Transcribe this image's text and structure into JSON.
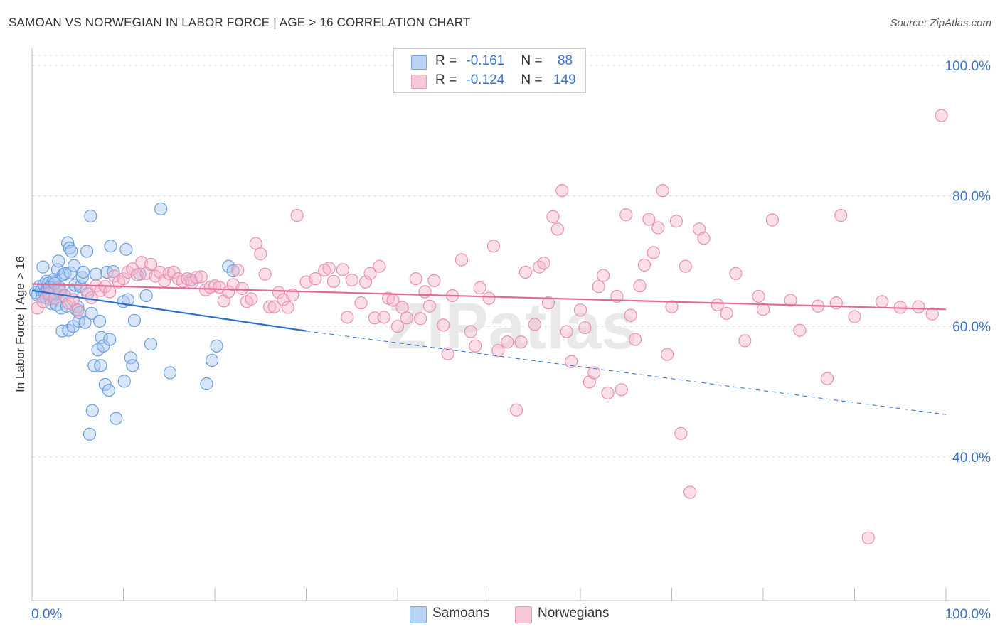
{
  "title": "SAMOAN VS NORWEGIAN IN LABOR FORCE | AGE > 16 CORRELATION CHART",
  "source": "Source: ZipAtlas.com",
  "watermark": "ZIPatlas",
  "legend_top": {
    "rows": [
      {
        "r_label": "R =",
        "r_value": "-0.161",
        "n_label": "N =",
        "n_value": "88"
      },
      {
        "r_label": "R =",
        "r_value": "-0.124",
        "n_label": "N =",
        "n_value": "149"
      }
    ]
  },
  "legend_bottom": [
    "Samoans",
    "Norwegians"
  ],
  "colors": {
    "samoan_fill": "#a9c8f0",
    "samoan_stroke": "#6b9ee0",
    "samoan_line": "#2a6fcf",
    "norwegian_fill": "#f6b8cc",
    "norwegian_stroke": "#ea8fb0",
    "norwegian_line": "#e26a96",
    "tick_label": "#3b74c7",
    "grid": "#dddddd"
  },
  "chart_data": {
    "type": "scatter",
    "title": "SAMOAN VS NORWEGIAN IN LABOR FORCE | AGE > 16 CORRELATION CHART",
    "xlabel": "",
    "ylabel": "In Labor Force | Age > 16",
    "xlim": [
      0,
      100
    ],
    "ylim": [
      18,
      101.5
    ],
    "x_tick_labels": [
      "0.0%",
      "100.0%"
    ],
    "y_ticks": [
      40,
      60,
      80,
      100
    ],
    "y_tick_labels": [
      "40.0%",
      "60.0%",
      "80.0%",
      "100.0%"
    ],
    "grid": true,
    "legend_position": "top-center",
    "series": [
      {
        "name": "Samoans",
        "r": -0.161,
        "n": 88,
        "trend": {
          "x": [
            0,
            30
          ],
          "y": [
            65.5,
            59.3
          ],
          "dashed_to": [
            100,
            46.5
          ]
        },
        "points": [
          [
            0.4,
            65.2
          ],
          [
            0.6,
            64.8
          ],
          [
            0.8,
            66.1
          ],
          [
            1.0,
            65.5
          ],
          [
            1.1,
            64.6
          ],
          [
            1.2,
            69.1
          ],
          [
            1.3,
            66.4
          ],
          [
            1.4,
            65.1
          ],
          [
            1.5,
            64.4
          ],
          [
            1.6,
            66.9
          ],
          [
            1.7,
            65.8
          ],
          [
            1.8,
            66.6
          ],
          [
            1.9,
            65.0
          ],
          [
            2.0,
            64.2
          ],
          [
            2.1,
            63.5
          ],
          [
            2.2,
            65.9
          ],
          [
            2.3,
            66.8
          ],
          [
            2.4,
            67.2
          ],
          [
            2.5,
            65.3
          ],
          [
            2.6,
            64.9
          ],
          [
            2.7,
            63.3
          ],
          [
            2.8,
            68.7
          ],
          [
            2.9,
            70.0
          ],
          [
            3.0,
            66.0
          ],
          [
            3.1,
            65.3
          ],
          [
            3.2,
            62.8
          ],
          [
            3.3,
            59.3
          ],
          [
            3.4,
            67.9
          ],
          [
            3.5,
            64.8
          ],
          [
            3.6,
            68.1
          ],
          [
            3.8,
            63.1
          ],
          [
            3.9,
            72.8
          ],
          [
            4.0,
            59.4
          ],
          [
            4.1,
            72.0
          ],
          [
            4.2,
            68.2
          ],
          [
            4.4,
            65.2
          ],
          [
            4.5,
            60.0
          ],
          [
            4.6,
            69.3
          ],
          [
            4.7,
            66.3
          ],
          [
            4.8,
            62.6
          ],
          [
            5.0,
            63.0
          ],
          [
            5.1,
            60.8
          ],
          [
            5.2,
            62.1
          ],
          [
            5.3,
            66.1
          ],
          [
            5.5,
            67.5
          ],
          [
            5.6,
            68.3
          ],
          [
            5.8,
            60.6
          ],
          [
            6.0,
            71.5
          ],
          [
            6.1,
            65.0
          ],
          [
            6.4,
            76.9
          ],
          [
            6.5,
            62.0
          ],
          [
            6.6,
            47.1
          ],
          [
            6.8,
            54.0
          ],
          [
            7.0,
            68.0
          ],
          [
            7.2,
            56.4
          ],
          [
            7.4,
            60.8
          ],
          [
            7.5,
            54.0
          ],
          [
            7.6,
            58.3
          ],
          [
            7.8,
            57.0
          ],
          [
            8.0,
            51.1
          ],
          [
            8.2,
            68.3
          ],
          [
            8.4,
            50.2
          ],
          [
            8.6,
            72.3
          ],
          [
            8.9,
            68.4
          ],
          [
            9.2,
            45.9
          ],
          [
            10.0,
            63.8
          ],
          [
            10.1,
            51.6
          ],
          [
            10.3,
            71.8
          ],
          [
            10.5,
            64.1
          ],
          [
            10.8,
            55.2
          ],
          [
            11.0,
            54.0
          ],
          [
            11.2,
            60.9
          ],
          [
            11.8,
            68.0
          ],
          [
            12.5,
            64.7
          ],
          [
            13.0,
            57.3
          ],
          [
            14.1,
            78.0
          ],
          [
            15.1,
            52.9
          ],
          [
            17.4,
            67.1
          ],
          [
            19.1,
            51.2
          ],
          [
            19.7,
            54.8
          ],
          [
            20.2,
            57.0
          ],
          [
            21.5,
            69.2
          ],
          [
            22.0,
            68.5
          ],
          [
            6.3,
            43.5
          ],
          [
            4.3,
            71.5
          ],
          [
            8.5,
            58.0
          ],
          [
            1.9,
            66.0
          ],
          [
            2.5,
            66.6
          ]
        ]
      },
      {
        "name": "Norwegians",
        "r": -0.124,
        "n": 149,
        "trend": {
          "x": [
            0,
            100
          ],
          "y": [
            66.5,
            62.6
          ]
        },
        "points": [
          [
            0.6,
            62.8
          ],
          [
            1.2,
            63.8
          ],
          [
            1.8,
            65.0
          ],
          [
            2.5,
            64.3
          ],
          [
            3.0,
            65.7
          ],
          [
            3.6,
            64.7
          ],
          [
            4.0,
            63.6
          ],
          [
            4.5,
            64.1
          ],
          [
            5.0,
            62.5
          ],
          [
            6.0,
            65.5
          ],
          [
            6.5,
            64.4
          ],
          [
            7.0,
            66.2
          ],
          [
            7.5,
            65.5
          ],
          [
            8.0,
            66.1
          ],
          [
            8.5,
            65.3
          ],
          [
            9.0,
            67.7
          ],
          [
            9.5,
            66.8
          ],
          [
            10.0,
            67.3
          ],
          [
            10.5,
            68.3
          ],
          [
            11.0,
            68.8
          ],
          [
            11.5,
            67.9
          ],
          [
            12.0,
            69.8
          ],
          [
            12.5,
            68.1
          ],
          [
            13.0,
            69.5
          ],
          [
            13.5,
            67.7
          ],
          [
            14.0,
            68.3
          ],
          [
            14.5,
            67.0
          ],
          [
            15.0,
            68.1
          ],
          [
            15.5,
            68.3
          ],
          [
            16.0,
            67.3
          ],
          [
            16.5,
            66.9
          ],
          [
            17.0,
            67.3
          ],
          [
            17.5,
            66.7
          ],
          [
            18.0,
            67.5
          ],
          [
            18.5,
            67.6
          ],
          [
            19.0,
            65.6
          ],
          [
            19.5,
            66.0
          ],
          [
            20.0,
            66.2
          ],
          [
            20.5,
            66.0
          ],
          [
            21.0,
            63.9
          ],
          [
            21.5,
            65.3
          ],
          [
            22.0,
            66.4
          ],
          [
            22.5,
            68.6
          ],
          [
            23.0,
            65.8
          ],
          [
            23.5,
            63.8
          ],
          [
            24.0,
            64.2
          ],
          [
            24.5,
            72.7
          ],
          [
            25.0,
            71.1
          ],
          [
            25.5,
            68.0
          ],
          [
            26.0,
            63.0
          ],
          [
            26.5,
            63.0
          ],
          [
            27.0,
            65.2
          ],
          [
            27.5,
            64.1
          ],
          [
            28.0,
            62.9
          ],
          [
            28.5,
            64.8
          ],
          [
            29.0,
            77.0
          ],
          [
            30.0,
            66.8
          ],
          [
            31.0,
            67.3
          ],
          [
            32.0,
            68.6
          ],
          [
            32.5,
            68.9
          ],
          [
            33.0,
            66.9
          ],
          [
            34.0,
            68.7
          ],
          [
            34.5,
            61.4
          ],
          [
            35.0,
            67.1
          ],
          [
            36.0,
            63.6
          ],
          [
            36.5,
            66.8
          ],
          [
            37.0,
            68.1
          ],
          [
            37.5,
            61.3
          ],
          [
            38.0,
            69.2
          ],
          [
            38.5,
            61.4
          ],
          [
            39.0,
            64.3
          ],
          [
            39.5,
            64.0
          ],
          [
            40.0,
            60.0
          ],
          [
            40.5,
            62.9
          ],
          [
            41.0,
            61.3
          ],
          [
            42.0,
            67.3
          ],
          [
            42.5,
            61.2
          ],
          [
            43.0,
            65.3
          ],
          [
            43.5,
            63.1
          ],
          [
            44.0,
            67.0
          ],
          [
            45.0,
            60.2
          ],
          [
            45.5,
            55.8
          ],
          [
            46.0,
            64.7
          ],
          [
            47.0,
            70.2
          ],
          [
            48.0,
            59.2
          ],
          [
            48.5,
            57.0
          ],
          [
            49.0,
            65.9
          ],
          [
            50.0,
            64.3
          ],
          [
            50.5,
            72.3
          ],
          [
            51.0,
            56.3
          ],
          [
            52.0,
            57.6
          ],
          [
            53.0,
            47.2
          ],
          [
            53.5,
            57.6
          ],
          [
            54.0,
            68.3
          ],
          [
            55.0,
            60.3
          ],
          [
            55.5,
            69.1
          ],
          [
            56.0,
            69.7
          ],
          [
            56.5,
            63.6
          ],
          [
            57.0,
            76.8
          ],
          [
            57.5,
            74.9
          ],
          [
            58.0,
            80.8
          ],
          [
            58.5,
            59.2
          ],
          [
            59.0,
            54.6
          ],
          [
            60.0,
            62.5
          ],
          [
            60.5,
            59.8
          ],
          [
            61.0,
            51.5
          ],
          [
            61.5,
            52.9
          ],
          [
            62.0,
            66.1
          ],
          [
            62.5,
            67.8
          ],
          [
            63.0,
            49.8
          ],
          [
            64.0,
            64.6
          ],
          [
            64.5,
            50.3
          ],
          [
            65.0,
            77.1
          ],
          [
            65.5,
            61.7
          ],
          [
            66.0,
            58.0
          ],
          [
            66.5,
            66.2
          ],
          [
            67.0,
            69.4
          ],
          [
            67.5,
            76.4
          ],
          [
            68.0,
            71.3
          ],
          [
            68.5,
            75.1
          ],
          [
            69.0,
            80.8
          ],
          [
            69.5,
            55.7
          ],
          [
            70.0,
            63.0
          ],
          [
            70.5,
            76.1
          ],
          [
            71.0,
            43.6
          ],
          [
            71.5,
            69.2
          ],
          [
            72.0,
            34.6
          ],
          [
            73.0,
            74.9
          ],
          [
            73.5,
            73.5
          ],
          [
            75.0,
            63.3
          ],
          [
            76.0,
            62.0
          ],
          [
            77.0,
            68.1
          ],
          [
            78.0,
            57.8
          ],
          [
            79.5,
            64.6
          ],
          [
            80.0,
            62.6
          ],
          [
            81.0,
            76.3
          ],
          [
            83.0,
            64.0
          ],
          [
            84.0,
            59.4
          ],
          [
            86.0,
            63.1
          ],
          [
            87.0,
            52.0
          ],
          [
            88.0,
            63.6
          ],
          [
            88.5,
            77.0
          ],
          [
            90.0,
            61.5
          ],
          [
            91.5,
            27.6
          ],
          [
            93.0,
            63.8
          ],
          [
            95.0,
            62.9
          ],
          [
            97.0,
            63.0
          ],
          [
            98.5,
            61.9
          ],
          [
            99.5,
            92.3
          ]
        ]
      }
    ]
  }
}
